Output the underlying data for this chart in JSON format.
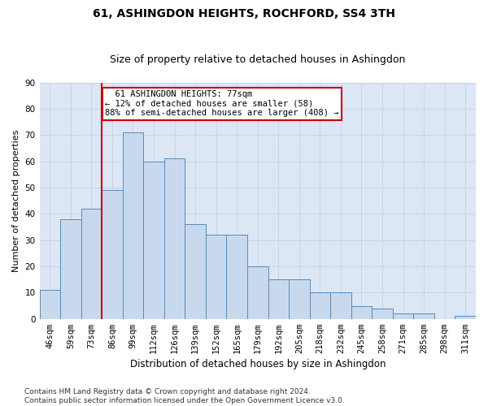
{
  "title": "61, ASHINGDON HEIGHTS, ROCHFORD, SS4 3TH",
  "subtitle": "Size of property relative to detached houses in Ashingdon",
  "xlabel": "Distribution of detached houses by size in Ashingdon",
  "ylabel": "Number of detached properties",
  "categories": [
    "46sqm",
    "59sqm",
    "73sqm",
    "86sqm",
    "99sqm",
    "112sqm",
    "126sqm",
    "139sqm",
    "152sqm",
    "165sqm",
    "179sqm",
    "192sqm",
    "205sqm",
    "218sqm",
    "232sqm",
    "245sqm",
    "258sqm",
    "271sqm",
    "285sqm",
    "298sqm",
    "311sqm"
  ],
  "values": [
    11,
    38,
    42,
    49,
    71,
    60,
    61,
    36,
    32,
    32,
    20,
    15,
    15,
    10,
    10,
    5,
    4,
    2,
    2,
    0,
    1
  ],
  "bar_color": "#c9d9ed",
  "bar_edge_color": "#5a8ab5",
  "vline_x_idx": 2,
  "vline_color": "#cc0000",
  "annotation_text": "  61 ASHINGDON HEIGHTS: 77sqm\n← 12% of detached houses are smaller (58)\n88% of semi-detached houses are larger (408) →",
  "annotation_box_color": "#ffffff",
  "annotation_box_edge": "#cc0000",
  "ylim": [
    0,
    90
  ],
  "yticks": [
    0,
    10,
    20,
    30,
    40,
    50,
    60,
    70,
    80,
    90
  ],
  "grid_color": "#c8d4e8",
  "bg_color": "#dce6f5",
  "footer": "Contains HM Land Registry data © Crown copyright and database right 2024.\nContains public sector information licensed under the Open Government Licence v3.0.",
  "title_fontsize": 10,
  "subtitle_fontsize": 9,
  "xlabel_fontsize": 8.5,
  "ylabel_fontsize": 8,
  "tick_fontsize": 7.5,
  "annotation_fontsize": 7.5,
  "footer_fontsize": 6.5
}
